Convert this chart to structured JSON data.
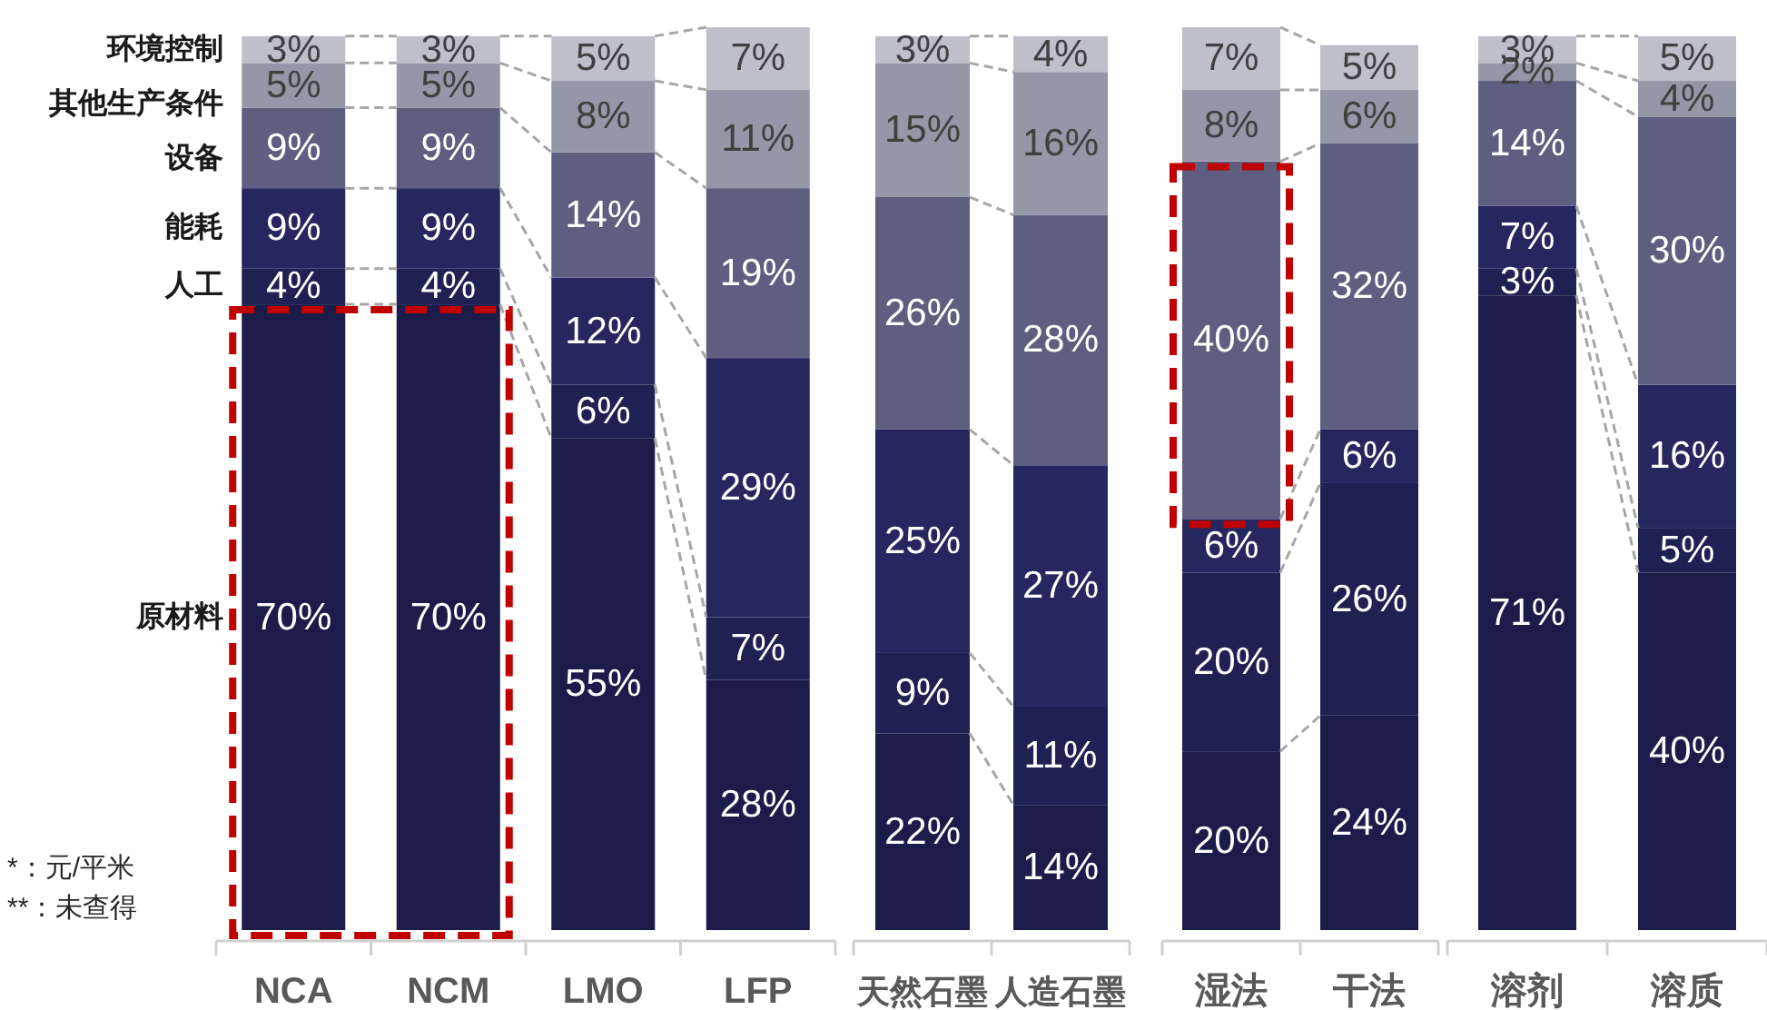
{
  "chart_data": {
    "type": "bar",
    "stacked": true,
    "categories": [
      "NCA",
      "NCM",
      "LMO",
      "LFP",
      "天然石墨",
      "人造石墨",
      "湿法",
      "干法",
      "溶剂",
      "溶质"
    ],
    "series": [
      {
        "name": "原材料",
        "color": "#1c1c4a",
        "values": [
          70,
          70,
          55,
          28,
          22,
          14,
          20,
          24,
          71,
          40
        ],
        "value_labels": [
          "70%",
          "70%",
          "55%",
          "28%",
          "22%",
          "14%",
          "20%",
          "24%",
          "71%",
          "40%"
        ]
      },
      {
        "name": "人工",
        "color": "#1f2152",
        "values": [
          4,
          4,
          6,
          7,
          9,
          11,
          20,
          26,
          3,
          5
        ],
        "value_labels": [
          "4%",
          "4%",
          "6%",
          "7%",
          "9%",
          "11%",
          "20%",
          "26%",
          "3%",
          "5%"
        ]
      },
      {
        "name": "能耗",
        "color": "#25275e",
        "values": [
          9,
          9,
          12,
          29,
          25,
          27,
          6,
          6,
          7,
          16
        ],
        "value_labels": [
          "9%",
          "9%",
          "12%",
          "29%",
          "25%",
          "27%",
          "6%",
          "6%",
          "7%",
          "16%"
        ]
      },
      {
        "name": "设备",
        "color": "#5e5f80",
        "values": [
          9,
          9,
          14,
          19,
          26,
          28,
          40,
          32,
          14,
          30
        ],
        "value_labels": [
          "9%",
          "9%",
          "14%",
          "19%",
          "26%",
          "28%",
          "40%",
          "32%",
          "14%",
          "30%"
        ]
      },
      {
        "name": "其他生产条件",
        "color": "#9596a8",
        "values": [
          5,
          5,
          8,
          11,
          15,
          16,
          8,
          6,
          2,
          4
        ],
        "value_labels": [
          "5%",
          "5%",
          "8%",
          "11%",
          "15%",
          "16%",
          "8%",
          "6%",
          "2%",
          "4%"
        ]
      },
      {
        "name": "环境控制",
        "color": "#bebfc9",
        "values": [
          3,
          3,
          5,
          7,
          3,
          4,
          7,
          5,
          3,
          5
        ],
        "value_labels": [
          "3%",
          "3%",
          "5%",
          "7%",
          "3%",
          "4%",
          "7%",
          "5%",
          "3%",
          "5%"
        ]
      }
    ],
    "annotations": [
      "*：元/平米",
      "**：未查得"
    ]
  }
}
